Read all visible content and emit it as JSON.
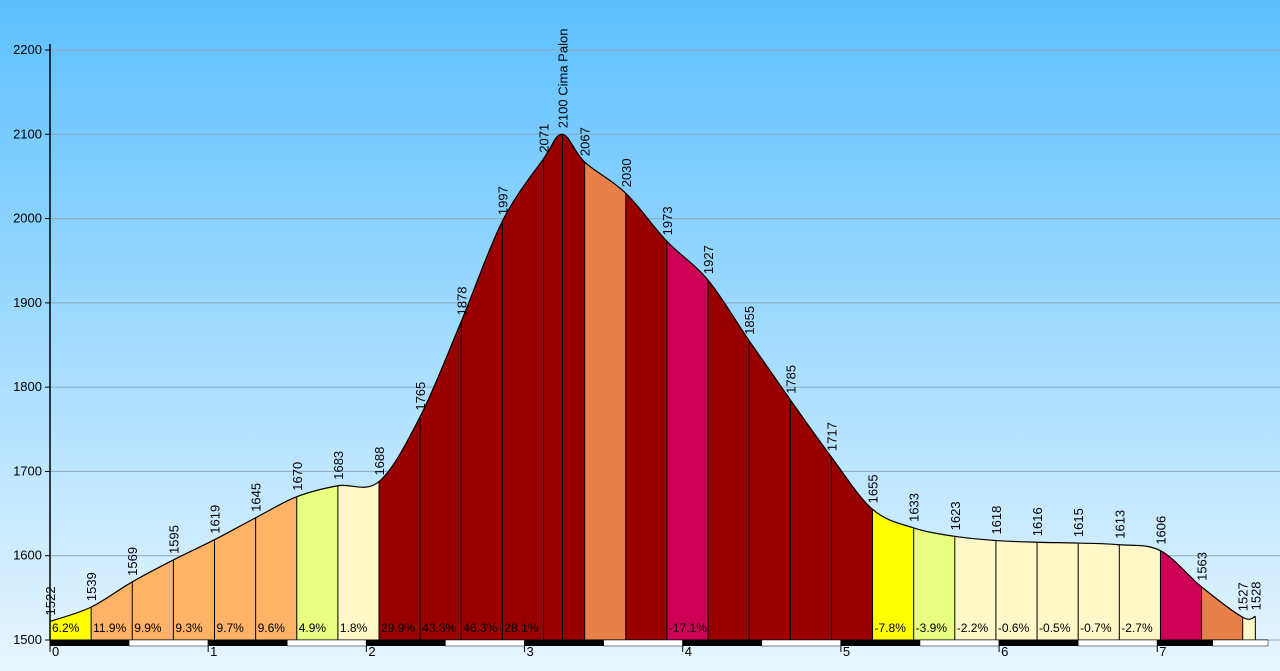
{
  "chart_data": {
    "type": "area",
    "xlabel": "",
    "ylabel": "",
    "xlim": [
      0,
      7.7
    ],
    "ylim": [
      1500,
      2200
    ],
    "y_ticks": [
      1500,
      1600,
      1700,
      1800,
      1900,
      2000,
      2100,
      2200
    ],
    "x_ticks": [
      0,
      1,
      2,
      3,
      4,
      5,
      6,
      7
    ],
    "grid": "horizontal",
    "background": [
      "#5cc0ff",
      "#e8f6ff"
    ],
    "points": [
      {
        "x": 0.0,
        "elev": 1522,
        "label": "1522"
      },
      {
        "x": 0.26,
        "elev": 1539,
        "label": "1539"
      },
      {
        "x": 0.52,
        "elev": 1569,
        "label": "1569"
      },
      {
        "x": 0.78,
        "elev": 1595,
        "label": "1595"
      },
      {
        "x": 1.04,
        "elev": 1619,
        "label": "1619"
      },
      {
        "x": 1.3,
        "elev": 1645,
        "label": "1645"
      },
      {
        "x": 1.56,
        "elev": 1670,
        "label": "1670"
      },
      {
        "x": 1.82,
        "elev": 1683,
        "label": "1683"
      },
      {
        "x": 2.08,
        "elev": 1688,
        "label": "1688"
      },
      {
        "x": 2.34,
        "elev": 1765,
        "label": "1765"
      },
      {
        "x": 2.6,
        "elev": 1878,
        "label": "1878"
      },
      {
        "x": 2.86,
        "elev": 1997,
        "label": "1997"
      },
      {
        "x": 3.12,
        "elev": 2071,
        "label": "2071"
      },
      {
        "x": 3.24,
        "elev": 2100,
        "label": "2100 Cima Palon"
      },
      {
        "x": 3.38,
        "elev": 2067,
        "label": "2067"
      },
      {
        "x": 3.64,
        "elev": 2030,
        "label": "2030"
      },
      {
        "x": 3.9,
        "elev": 1973,
        "label": "1973"
      },
      {
        "x": 4.16,
        "elev": 1927,
        "label": "1927"
      },
      {
        "x": 4.42,
        "elev": 1855,
        "label": "1855"
      },
      {
        "x": 4.68,
        "elev": 1785,
        "label": "1785"
      },
      {
        "x": 4.94,
        "elev": 1717,
        "label": "1717"
      },
      {
        "x": 5.2,
        "elev": 1655,
        "label": "1655"
      },
      {
        "x": 5.46,
        "elev": 1633,
        "label": "1633"
      },
      {
        "x": 5.72,
        "elev": 1623,
        "label": "1623"
      },
      {
        "x": 5.98,
        "elev": 1618,
        "label": "1618"
      },
      {
        "x": 6.24,
        "elev": 1616,
        "label": "1616"
      },
      {
        "x": 6.5,
        "elev": 1615,
        "label": "1615"
      },
      {
        "x": 6.76,
        "elev": 1613,
        "label": "1613"
      },
      {
        "x": 7.02,
        "elev": 1606,
        "label": "1606"
      },
      {
        "x": 7.28,
        "elev": 1563,
        "label": "1563"
      },
      {
        "x": 7.54,
        "elev": 1527,
        "label": "1527"
      },
      {
        "x": 7.62,
        "elev": 1528,
        "label": "1528"
      }
    ],
    "segments": [
      {
        "from": 0,
        "to": 1,
        "grade": "6.2%",
        "color": "#ffff00"
      },
      {
        "from": 1,
        "to": 2,
        "grade": "11.9%",
        "color": "#ffb366"
      },
      {
        "from": 2,
        "to": 3,
        "grade": "9.9%",
        "color": "#ffb366"
      },
      {
        "from": 3,
        "to": 4,
        "grade": "9.3%",
        "color": "#ffb366"
      },
      {
        "from": 4,
        "to": 5,
        "grade": "9.7%",
        "color": "#ffb366"
      },
      {
        "from": 5,
        "to": 6,
        "grade": "9.6%",
        "color": "#ffb366"
      },
      {
        "from": 6,
        "to": 7,
        "grade": "4.9%",
        "color": "#e8ff80"
      },
      {
        "from": 7,
        "to": 8,
        "grade": "1.8%",
        "color": "#fff7c8"
      },
      {
        "from": 8,
        "to": 9,
        "grade": "29.9%",
        "color": "#990000"
      },
      {
        "from": 9,
        "to": 10,
        "grade": "43.3%",
        "color": "#990000"
      },
      {
        "from": 10,
        "to": 11,
        "grade": "46.3%",
        "color": "#990000"
      },
      {
        "from": 11,
        "to": 12,
        "grade": "28.1%",
        "color": "#990000"
      },
      {
        "from": 12,
        "to": 13,
        "grade": "",
        "color": "#990000"
      },
      {
        "from": 13,
        "to": 14,
        "grade": "",
        "color": "#990000"
      },
      {
        "from": 14,
        "to": 15,
        "grade": "",
        "color": "#e8804a"
      },
      {
        "from": 15,
        "to": 16,
        "grade": "",
        "color": "#990000"
      },
      {
        "from": 16,
        "to": 17,
        "grade": "-17.1%",
        "color": "#cc0055"
      },
      {
        "from": 17,
        "to": 18,
        "grade": "",
        "color": "#990000"
      },
      {
        "from": 18,
        "to": 19,
        "grade": "",
        "color": "#990000"
      },
      {
        "from": 19,
        "to": 20,
        "grade": "",
        "color": "#990000"
      },
      {
        "from": 20,
        "to": 21,
        "grade": "",
        "color": "#990000"
      },
      {
        "from": 21,
        "to": 22,
        "grade": "-7.8%",
        "color": "#ffff00"
      },
      {
        "from": 22,
        "to": 23,
        "grade": "-3.9%",
        "color": "#e8ff80"
      },
      {
        "from": 23,
        "to": 24,
        "grade": "-2.2%",
        "color": "#fff7c8"
      },
      {
        "from": 24,
        "to": 25,
        "grade": "-0.6%",
        "color": "#fff7c8"
      },
      {
        "from": 25,
        "to": 26,
        "grade": "-0.5%",
        "color": "#fff7c8"
      },
      {
        "from": 26,
        "to": 27,
        "grade": "-0.7%",
        "color": "#fff7c8"
      },
      {
        "from": 27,
        "to": 28,
        "grade": "-2.7%",
        "color": "#fff7c8"
      },
      {
        "from": 28,
        "to": 29,
        "grade": "",
        "color": "#cc0055"
      },
      {
        "from": 29,
        "to": 30,
        "grade": "",
        "color": "#e8804a"
      },
      {
        "from": 30,
        "to": 31,
        "grade": "",
        "color": "#fff7c8"
      }
    ]
  }
}
